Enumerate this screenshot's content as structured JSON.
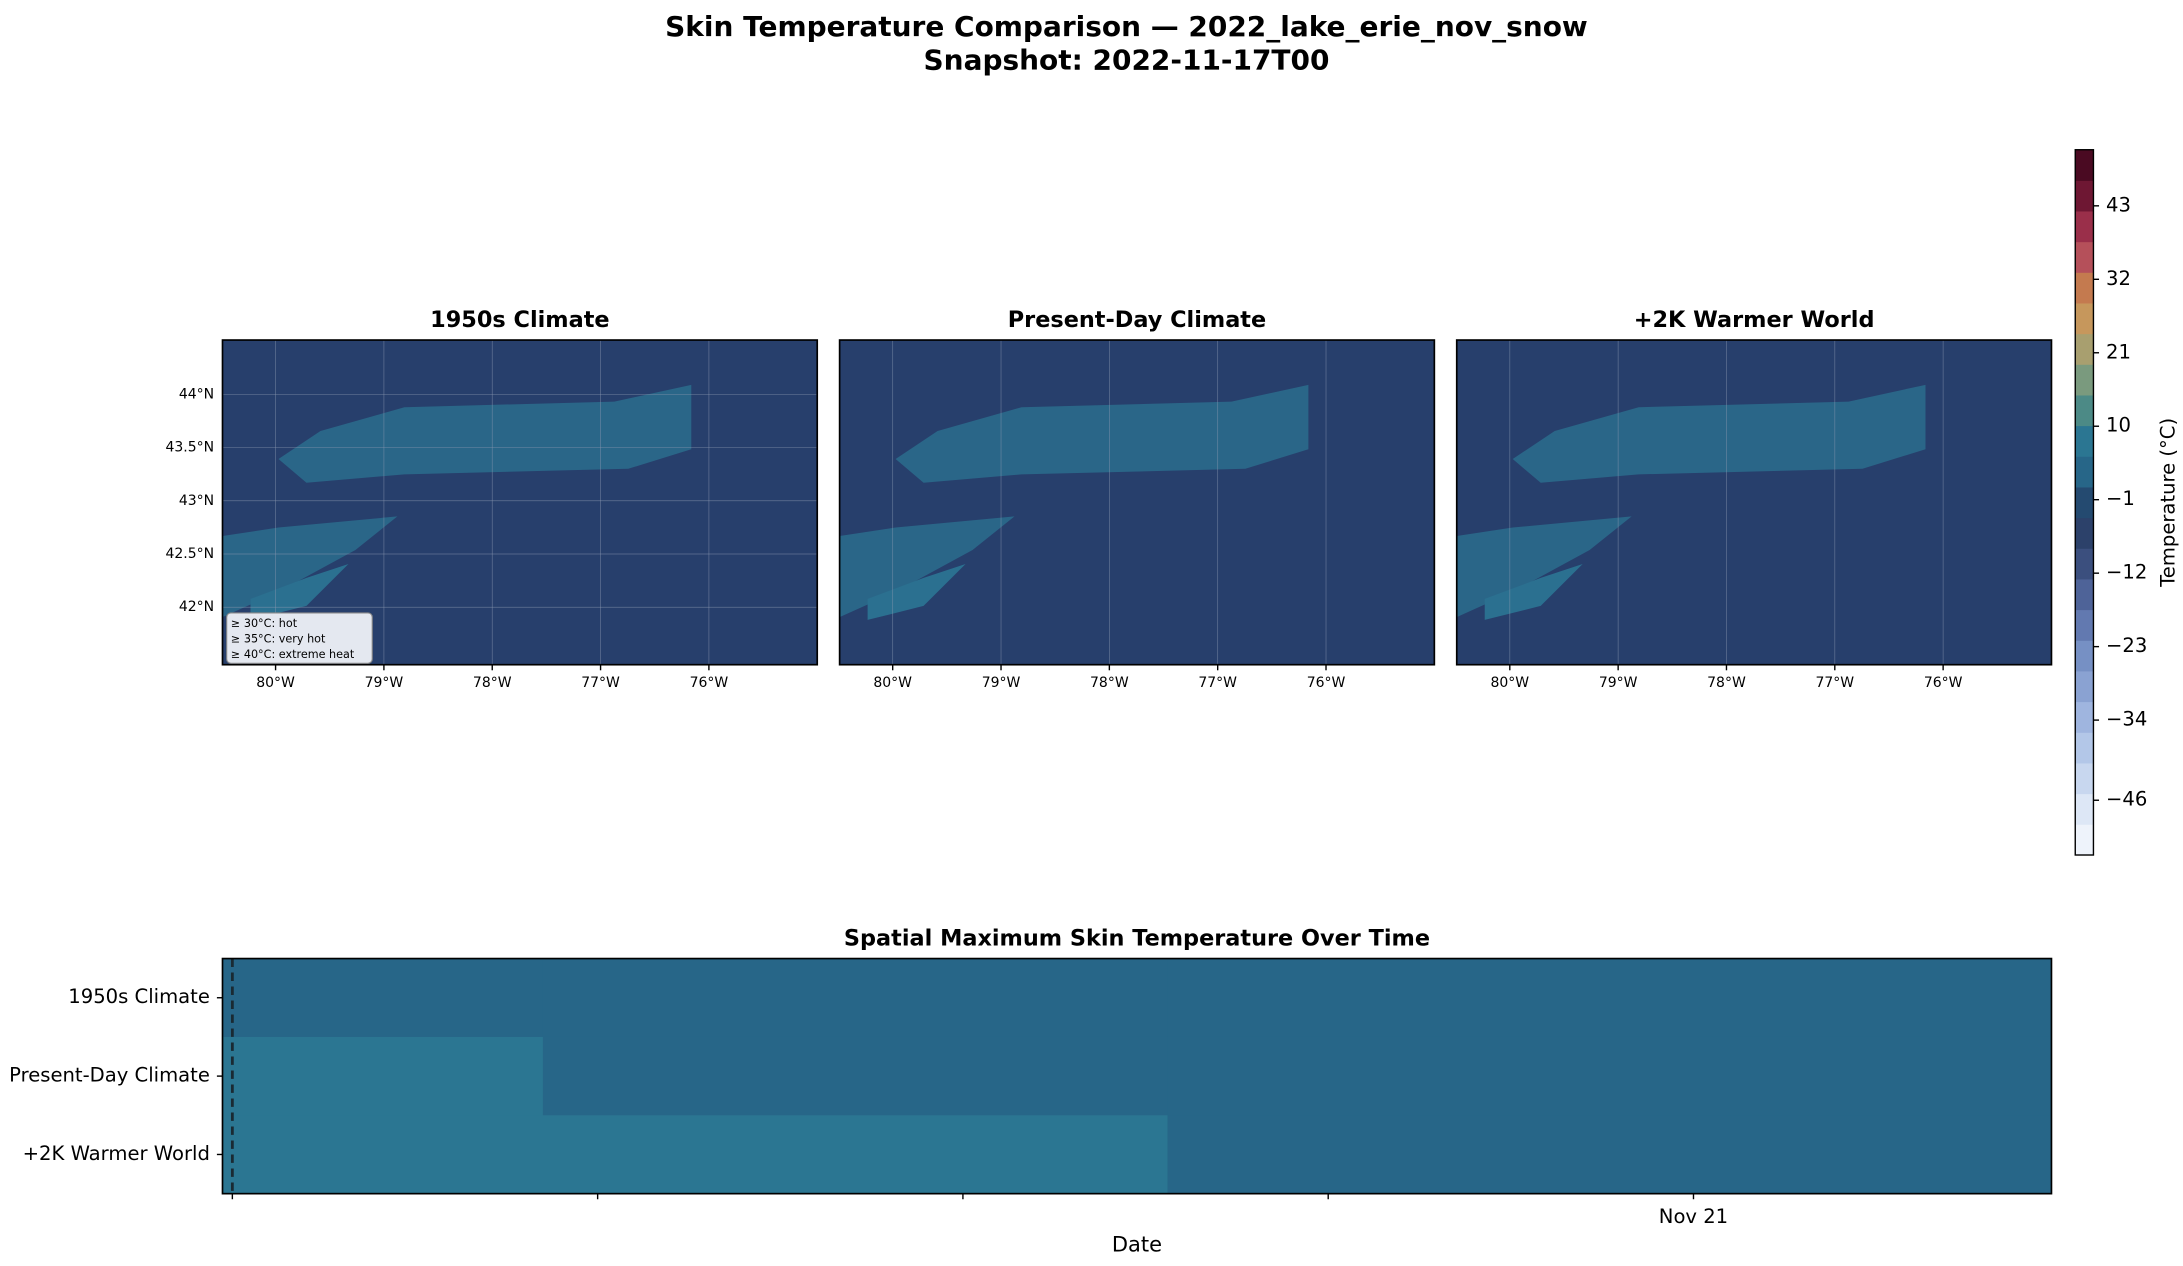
{
  "figure": {
    "title": "Skin Temperature Comparison — 2022_lake_erie_nov_snow",
    "subtitle": "Snapshot: 2022-11-17T00"
  },
  "chart_data": [
    {
      "type": "map",
      "title": "1950s Climate",
      "xlim": [
        -80.49,
        -75.0
      ],
      "ylim": [
        41.46,
        44.51
      ],
      "xticks": [
        {
          "value": -80,
          "label": "80°W"
        },
        {
          "value": -79,
          "label": "79°W"
        },
        {
          "value": -78,
          "label": "78°W"
        },
        {
          "value": -77,
          "label": "77°W"
        },
        {
          "value": -76,
          "label": "76°W"
        }
      ],
      "yticks": [
        {
          "value": 42,
          "label": "42°N"
        },
        {
          "value": 42.5,
          "label": "42.5°N"
        },
        {
          "value": 43,
          "label": "43°N"
        },
        {
          "value": 43.5,
          "label": "43.5°N"
        },
        {
          "value": 44,
          "label": "44°N"
        }
      ],
      "annotations": [
        "≥ 30°C: hot",
        "≥ 35°C: very hot",
        "≥ 40°C: extreme heat"
      ],
      "grid": true
    },
    {
      "type": "map",
      "title": "Present-Day Climate",
      "xlim": [
        -80.49,
        -75.0
      ],
      "ylim": [
        41.46,
        44.51
      ],
      "xticks": [
        {
          "value": -80,
          "label": "80°W"
        },
        {
          "value": -79,
          "label": "79°W"
        },
        {
          "value": -78,
          "label": "78°W"
        },
        {
          "value": -77,
          "label": "77°W"
        },
        {
          "value": -76,
          "label": "76°W"
        }
      ],
      "yticks": [],
      "grid": true
    },
    {
      "type": "map",
      "title": "+2K Warmer World",
      "xlim": [
        -80.49,
        -75.0
      ],
      "ylim": [
        41.46,
        44.51
      ],
      "xticks": [
        {
          "value": -80,
          "label": "80°W"
        },
        {
          "value": -79,
          "label": "79°W"
        },
        {
          "value": -78,
          "label": "78°W"
        },
        {
          "value": -77,
          "label": "77°W"
        },
        {
          "value": -76,
          "label": "76°W"
        }
      ],
      "yticks": [],
      "grid": true
    },
    {
      "type": "colorbar",
      "label": "Temperature (°C)",
      "lim": [
        -54.2,
        51.4
      ],
      "ticks": [
        {
          "value": -46,
          "label": "−46"
        },
        {
          "value": -34,
          "label": "−34"
        },
        {
          "value": -23,
          "label": "−23"
        },
        {
          "value": -12,
          "label": "−12"
        },
        {
          "value": -1,
          "label": "−1"
        },
        10,
        21,
        32,
        43
      ],
      "colors": [
        "#eef3fb",
        "#dde7f6",
        "#c8d7ef",
        "#b3c7e8",
        "#9fb5df",
        "#8aa2d2",
        "#7690c4",
        "#6279b0",
        "#4e6398",
        "#3b4f7e",
        "#2c416a",
        "#244a70",
        "#276688",
        "#2b7692",
        "#4c8a86",
        "#7a9a7e",
        "#a89f6f",
        "#c6975c",
        "#c47a4f",
        "#b5505a",
        "#9a2f4a",
        "#6e1733",
        "#4a0a22"
      ]
    },
    {
      "type": "heatmap",
      "title": "Spatial Maximum Skin Temperature Over Time",
      "xlabel": "Date",
      "categories": [
        "1950s Climate",
        "Present-Day Climate",
        "+2K Warmer World"
      ],
      "x_edges": [
        -0.027,
        0.85,
        2.56,
        4.98
      ],
      "values": [
        [
          4,
          4,
          4
        ],
        [
          7,
          4,
          4
        ],
        [
          7,
          8,
          4
        ]
      ],
      "xlim": [
        -0.027,
        4.98
      ],
      "xticks": [
        {
          "value": 0,
          "label": null
        },
        {
          "value": 1,
          "label": null
        },
        {
          "value": 2,
          "label": null
        },
        {
          "value": 3,
          "label": null
        },
        {
          "value": 4,
          "label": "Nov 21"
        }
      ],
      "snapshot_x": 0
    }
  ]
}
